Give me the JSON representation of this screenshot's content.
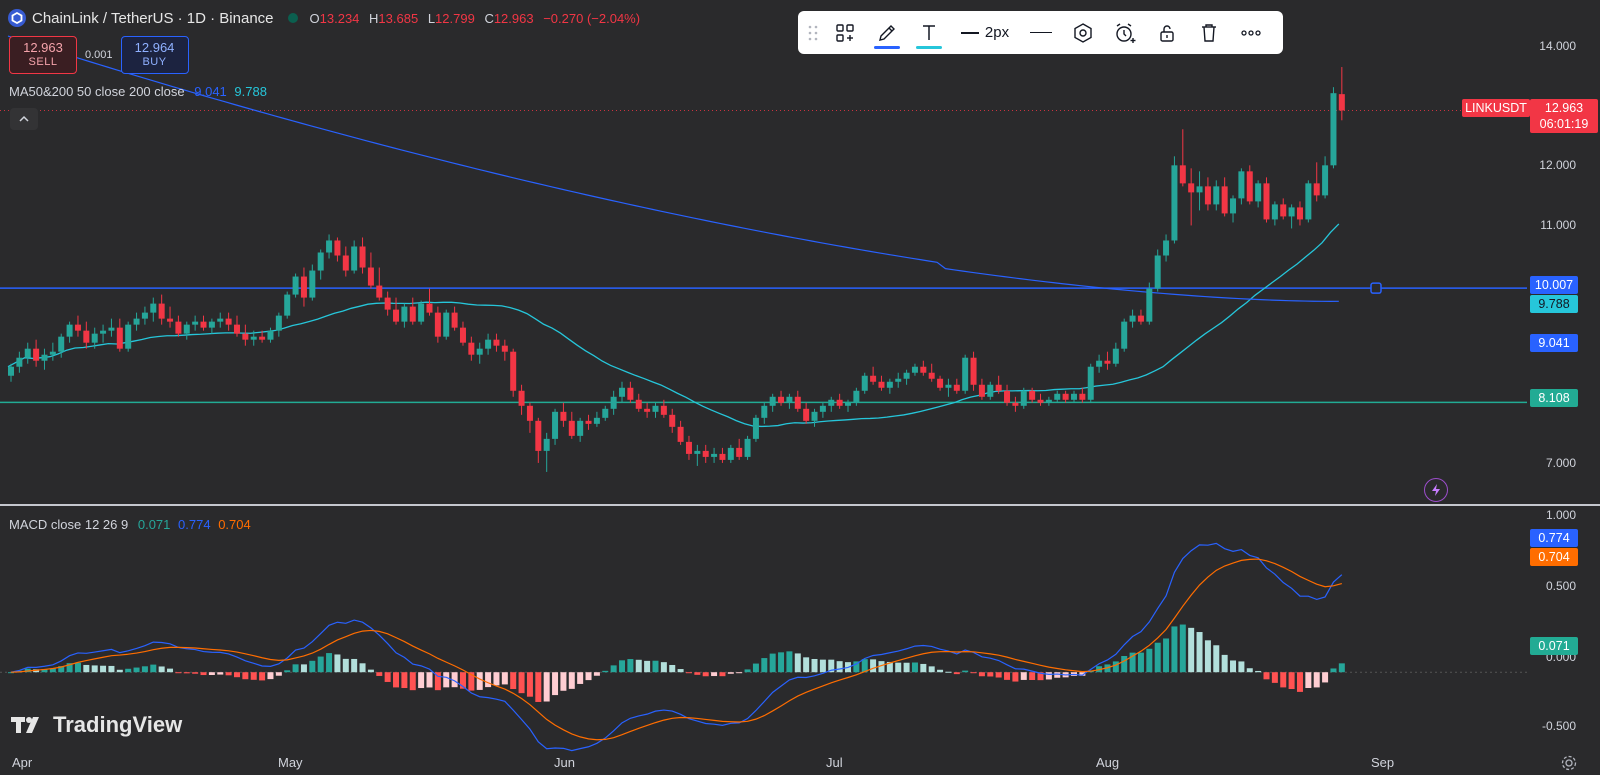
{
  "header": {
    "symbol_title": "ChainLink / TetherUS · 1D · Binance",
    "ohlc": [
      {
        "key": "O",
        "value": "13.234"
      },
      {
        "key": "H",
        "value": "13.685"
      },
      {
        "key": "L",
        "value": "12.799"
      },
      {
        "key": "C",
        "value": "12.963"
      }
    ],
    "change": "−0.270 (−2.04%)"
  },
  "trade": {
    "sell_price": "12.963",
    "sell_label": "SELL",
    "spread": "0.001",
    "buy_price": "12.964",
    "buy_label": "BUY"
  },
  "ma_indicator": {
    "label": "MA50&200 50 close 200 close",
    "ma50": "9.041",
    "ma200": "9.788"
  },
  "macd_indicator": {
    "label": "MACD close 12 26 9",
    "hist": "0.071",
    "macd": "0.774",
    "signal": "0.704"
  },
  "drawing_toolbar": {
    "stroke_width": "2px"
  },
  "price_axis": {
    "ticks": [
      "14.000",
      "12.000",
      "11.000",
      "7.000"
    ],
    "tags": {
      "symbol": "LINKUSDT",
      "last": "12.963",
      "countdown": "06:01:19",
      "hline_top": "10.007",
      "ma200": "9.788",
      "ma50": "9.041",
      "hline_bottom": "8.108"
    }
  },
  "macd_axis": {
    "ticks": [
      "1.000",
      "0.500",
      "0.000",
      "-0.500"
    ],
    "tags": {
      "macd": "0.774",
      "signal": "0.704",
      "hist": "0.071"
    }
  },
  "time_axis": {
    "months": [
      "Apr",
      "May",
      "Jun",
      "Jul",
      "Aug",
      "Sep"
    ]
  },
  "branding": {
    "name": "TradingView"
  },
  "colors": {
    "up": "#26a69a",
    "down": "#f23645",
    "ma50": "#2962ff",
    "ma200": "#26c6da",
    "macd": "#2962ff",
    "signal": "#ff6d00",
    "hline_top": "#2962ff",
    "hline_bottom": "#22ab94"
  },
  "chart_data": {
    "type": "candlestick",
    "title": "ChainLink / TetherUS · 1D · Binance",
    "price_range": [
      6.4,
      14.8
    ],
    "horizontal_lines": [
      10.007,
      8.108
    ],
    "candles": [
      {
        "o": 8.55,
        "h": 8.75,
        "l": 8.45,
        "c": 8.7
      },
      {
        "o": 8.7,
        "h": 8.95,
        "l": 8.6,
        "c": 8.85
      },
      {
        "o": 8.85,
        "h": 9.1,
        "l": 8.75,
        "c": 9.0
      },
      {
        "o": 9.0,
        "h": 9.15,
        "l": 8.7,
        "c": 8.8
      },
      {
        "o": 8.8,
        "h": 9.0,
        "l": 8.65,
        "c": 8.9
      },
      {
        "o": 8.9,
        "h": 9.1,
        "l": 8.8,
        "c": 8.95
      },
      {
        "o": 8.95,
        "h": 9.25,
        "l": 8.85,
        "c": 9.2
      },
      {
        "o": 9.2,
        "h": 9.45,
        "l": 9.1,
        "c": 9.4
      },
      {
        "o": 9.4,
        "h": 9.55,
        "l": 9.2,
        "c": 9.3
      },
      {
        "o": 9.3,
        "h": 9.45,
        "l": 9.0,
        "c": 9.1
      },
      {
        "o": 9.1,
        "h": 9.35,
        "l": 9.0,
        "c": 9.25
      },
      {
        "o": 9.25,
        "h": 9.4,
        "l": 9.1,
        "c": 9.3
      },
      {
        "o": 9.3,
        "h": 9.5,
        "l": 9.2,
        "c": 9.35
      },
      {
        "o": 9.35,
        "h": 9.5,
        "l": 8.95,
        "c": 9.0
      },
      {
        "o": 9.0,
        "h": 9.45,
        "l": 8.95,
        "c": 9.4
      },
      {
        "o": 9.4,
        "h": 9.6,
        "l": 9.3,
        "c": 9.5
      },
      {
        "o": 9.5,
        "h": 9.7,
        "l": 9.4,
        "c": 9.6
      },
      {
        "o": 9.6,
        "h": 9.85,
        "l": 9.45,
        "c": 9.75
      },
      {
        "o": 9.75,
        "h": 9.9,
        "l": 9.4,
        "c": 9.5
      },
      {
        "o": 9.5,
        "h": 9.7,
        "l": 9.35,
        "c": 9.45
      },
      {
        "o": 9.45,
        "h": 9.55,
        "l": 9.2,
        "c": 9.25
      },
      {
        "o": 9.25,
        "h": 9.45,
        "l": 9.15,
        "c": 9.4
      },
      {
        "o": 9.4,
        "h": 9.55,
        "l": 9.3,
        "c": 9.45
      },
      {
        "o": 9.45,
        "h": 9.55,
        "l": 9.3,
        "c": 9.35
      },
      {
        "o": 9.35,
        "h": 9.5,
        "l": 9.25,
        "c": 9.45
      },
      {
        "o": 9.45,
        "h": 9.6,
        "l": 9.35,
        "c": 9.5
      },
      {
        "o": 9.5,
        "h": 9.6,
        "l": 9.3,
        "c": 9.4
      },
      {
        "o": 9.4,
        "h": 9.55,
        "l": 9.2,
        "c": 9.25
      },
      {
        "o": 9.25,
        "h": 9.4,
        "l": 9.05,
        "c": 9.15
      },
      {
        "o": 9.15,
        "h": 9.3,
        "l": 9.05,
        "c": 9.2
      },
      {
        "o": 9.2,
        "h": 9.3,
        "l": 9.1,
        "c": 9.15
      },
      {
        "o": 9.15,
        "h": 9.35,
        "l": 9.1,
        "c": 9.3
      },
      {
        "o": 9.3,
        "h": 9.6,
        "l": 9.2,
        "c": 9.55
      },
      {
        "o": 9.55,
        "h": 9.95,
        "l": 9.5,
        "c": 9.9
      },
      {
        "o": 9.9,
        "h": 10.25,
        "l": 9.85,
        "c": 10.2
      },
      {
        "o": 10.2,
        "h": 10.35,
        "l": 9.7,
        "c": 9.85
      },
      {
        "o": 9.85,
        "h": 10.4,
        "l": 9.8,
        "c": 10.3
      },
      {
        "o": 10.3,
        "h": 10.65,
        "l": 10.15,
        "c": 10.6
      },
      {
        "o": 10.6,
        "h": 10.9,
        "l": 10.5,
        "c": 10.8
      },
      {
        "o": 10.8,
        "h": 10.85,
        "l": 10.45,
        "c": 10.55
      },
      {
        "o": 10.55,
        "h": 10.7,
        "l": 10.2,
        "c": 10.3
      },
      {
        "o": 10.3,
        "h": 10.8,
        "l": 10.25,
        "c": 10.7
      },
      {
        "o": 10.7,
        "h": 10.85,
        "l": 10.25,
        "c": 10.35
      },
      {
        "o": 10.35,
        "h": 10.6,
        "l": 10.0,
        "c": 10.05
      },
      {
        "o": 10.05,
        "h": 10.35,
        "l": 9.8,
        "c": 9.85
      },
      {
        "o": 9.85,
        "h": 9.95,
        "l": 9.55,
        "c": 9.65
      },
      {
        "o": 9.65,
        "h": 9.85,
        "l": 9.4,
        "c": 9.45
      },
      {
        "o": 9.45,
        "h": 9.75,
        "l": 9.35,
        "c": 9.7
      },
      {
        "o": 9.7,
        "h": 9.85,
        "l": 9.4,
        "c": 9.45
      },
      {
        "o": 9.45,
        "h": 9.8,
        "l": 9.4,
        "c": 9.75
      },
      {
        "o": 9.75,
        "h": 10.0,
        "l": 9.55,
        "c": 9.6
      },
      {
        "o": 9.6,
        "h": 9.7,
        "l": 9.1,
        "c": 9.2
      },
      {
        "o": 9.2,
        "h": 9.65,
        "l": 9.15,
        "c": 9.6
      },
      {
        "o": 9.6,
        "h": 9.7,
        "l": 9.3,
        "c": 9.35
      },
      {
        "o": 9.35,
        "h": 9.45,
        "l": 9.05,
        "c": 9.1
      },
      {
        "o": 9.1,
        "h": 9.2,
        "l": 8.8,
        "c": 8.9
      },
      {
        "o": 8.9,
        "h": 9.1,
        "l": 8.75,
        "c": 9.0
      },
      {
        "o": 9.0,
        "h": 9.25,
        "l": 8.9,
        "c": 9.15
      },
      {
        "o": 9.15,
        "h": 9.25,
        "l": 8.95,
        "c": 9.05
      },
      {
        "o": 9.05,
        "h": 9.15,
        "l": 8.8,
        "c": 8.95
      },
      {
        "o": 8.95,
        "h": 9.0,
        "l": 8.2,
        "c": 8.3
      },
      {
        "o": 8.3,
        "h": 8.4,
        "l": 7.9,
        "c": 8.05
      },
      {
        "o": 8.05,
        "h": 8.1,
        "l": 7.6,
        "c": 7.8
      },
      {
        "o": 7.8,
        "h": 7.85,
        "l": 7.1,
        "c": 7.3
      },
      {
        "o": 7.3,
        "h": 7.6,
        "l": 6.95,
        "c": 7.5
      },
      {
        "o": 7.5,
        "h": 8.0,
        "l": 7.4,
        "c": 7.95
      },
      {
        "o": 7.95,
        "h": 8.1,
        "l": 7.7,
        "c": 7.8
      },
      {
        "o": 7.8,
        "h": 7.95,
        "l": 7.5,
        "c": 7.55
      },
      {
        "o": 7.55,
        "h": 7.85,
        "l": 7.45,
        "c": 7.8
      },
      {
        "o": 7.8,
        "h": 7.9,
        "l": 7.65,
        "c": 7.75
      },
      {
        "o": 7.75,
        "h": 7.95,
        "l": 7.7,
        "c": 7.85
      },
      {
        "o": 7.85,
        "h": 8.05,
        "l": 7.8,
        "c": 8.0
      },
      {
        "o": 8.0,
        "h": 8.3,
        "l": 7.9,
        "c": 8.2
      },
      {
        "o": 8.2,
        "h": 8.45,
        "l": 8.1,
        "c": 8.35
      },
      {
        "o": 8.35,
        "h": 8.45,
        "l": 8.1,
        "c": 8.15
      },
      {
        "o": 8.15,
        "h": 8.25,
        "l": 7.95,
        "c": 8.0
      },
      {
        "o": 8.0,
        "h": 8.1,
        "l": 7.85,
        "c": 7.95
      },
      {
        "o": 7.95,
        "h": 8.1,
        "l": 7.85,
        "c": 8.05
      },
      {
        "o": 8.05,
        "h": 8.15,
        "l": 7.85,
        "c": 7.9
      },
      {
        "o": 7.9,
        "h": 8.0,
        "l": 7.6,
        "c": 7.7
      },
      {
        "o": 7.7,
        "h": 7.8,
        "l": 7.4,
        "c": 7.45
      },
      {
        "o": 7.45,
        "h": 7.55,
        "l": 7.15,
        "c": 7.25
      },
      {
        "o": 7.25,
        "h": 7.4,
        "l": 7.05,
        "c": 7.3
      },
      {
        "o": 7.3,
        "h": 7.4,
        "l": 7.1,
        "c": 7.2
      },
      {
        "o": 7.2,
        "h": 7.35,
        "l": 7.1,
        "c": 7.25
      },
      {
        "o": 7.25,
        "h": 7.35,
        "l": 7.1,
        "c": 7.15
      },
      {
        "o": 7.15,
        "h": 7.4,
        "l": 7.1,
        "c": 7.35
      },
      {
        "o": 7.35,
        "h": 7.5,
        "l": 7.15,
        "c": 7.2
      },
      {
        "o": 7.2,
        "h": 7.55,
        "l": 7.15,
        "c": 7.5
      },
      {
        "o": 7.5,
        "h": 7.9,
        "l": 7.45,
        "c": 7.85
      },
      {
        "o": 7.85,
        "h": 8.1,
        "l": 7.75,
        "c": 8.05
      },
      {
        "o": 8.05,
        "h": 8.25,
        "l": 7.95,
        "c": 8.2
      },
      {
        "o": 8.2,
        "h": 8.3,
        "l": 8.05,
        "c": 8.1
      },
      {
        "o": 8.1,
        "h": 8.25,
        "l": 8.0,
        "c": 8.2
      },
      {
        "o": 8.2,
        "h": 8.3,
        "l": 7.95,
        "c": 8.0
      },
      {
        "o": 8.0,
        "h": 8.1,
        "l": 7.75,
        "c": 7.8
      },
      {
        "o": 7.8,
        "h": 8.0,
        "l": 7.7,
        "c": 7.95
      },
      {
        "o": 7.95,
        "h": 8.1,
        "l": 7.85,
        "c": 8.05
      },
      {
        "o": 8.05,
        "h": 8.2,
        "l": 7.95,
        "c": 8.15
      },
      {
        "o": 8.15,
        "h": 8.25,
        "l": 8.0,
        "c": 8.05
      },
      {
        "o": 8.05,
        "h": 8.15,
        "l": 7.95,
        "c": 8.1
      },
      {
        "o": 8.1,
        "h": 8.35,
        "l": 8.05,
        "c": 8.3
      },
      {
        "o": 8.3,
        "h": 8.6,
        "l": 8.25,
        "c": 8.55
      },
      {
        "o": 8.55,
        "h": 8.7,
        "l": 8.4,
        "c": 8.45
      },
      {
        "o": 8.45,
        "h": 8.55,
        "l": 8.3,
        "c": 8.35
      },
      {
        "o": 8.35,
        "h": 8.5,
        "l": 8.25,
        "c": 8.45
      },
      {
        "o": 8.45,
        "h": 8.6,
        "l": 8.35,
        "c": 8.5
      },
      {
        "o": 8.5,
        "h": 8.65,
        "l": 8.4,
        "c": 8.6
      },
      {
        "o": 8.6,
        "h": 8.75,
        "l": 8.55,
        "c": 8.7
      },
      {
        "o": 8.7,
        "h": 8.8,
        "l": 8.55,
        "c": 8.6
      },
      {
        "o": 8.6,
        "h": 8.75,
        "l": 8.45,
        "c": 8.5
      },
      {
        "o": 8.5,
        "h": 8.55,
        "l": 8.3,
        "c": 8.35
      },
      {
        "o": 8.35,
        "h": 8.5,
        "l": 8.2,
        "c": 8.4
      },
      {
        "o": 8.4,
        "h": 8.5,
        "l": 8.25,
        "c": 8.3
      },
      {
        "o": 8.3,
        "h": 8.9,
        "l": 8.25,
        "c": 8.85
      },
      {
        "o": 8.85,
        "h": 8.95,
        "l": 8.3,
        "c": 8.4
      },
      {
        "o": 8.4,
        "h": 8.5,
        "l": 8.15,
        "c": 8.2
      },
      {
        "o": 8.2,
        "h": 8.45,
        "l": 8.15,
        "c": 8.4
      },
      {
        "o": 8.4,
        "h": 8.55,
        "l": 8.25,
        "c": 8.3
      },
      {
        "o": 8.3,
        "h": 8.4,
        "l": 8.05,
        "c": 8.1
      },
      {
        "o": 8.1,
        "h": 8.2,
        "l": 7.95,
        "c": 8.05
      },
      {
        "o": 8.05,
        "h": 8.35,
        "l": 8.0,
        "c": 8.3
      },
      {
        "o": 8.3,
        "h": 8.35,
        "l": 8.1,
        "c": 8.15
      },
      {
        "o": 8.15,
        "h": 8.25,
        "l": 8.05,
        "c": 8.1
      },
      {
        "o": 8.1,
        "h": 8.2,
        "l": 8.05,
        "c": 8.15
      },
      {
        "o": 8.15,
        "h": 8.3,
        "l": 8.1,
        "c": 8.25
      },
      {
        "o": 8.25,
        "h": 8.3,
        "l": 8.1,
        "c": 8.15
      },
      {
        "o": 8.15,
        "h": 8.3,
        "l": 8.1,
        "c": 8.25
      },
      {
        "o": 8.25,
        "h": 8.35,
        "l": 8.1,
        "c": 8.15
      },
      {
        "o": 8.15,
        "h": 8.75,
        "l": 8.1,
        "c": 8.7
      },
      {
        "o": 8.7,
        "h": 8.9,
        "l": 8.6,
        "c": 8.8
      },
      {
        "o": 8.8,
        "h": 8.95,
        "l": 8.65,
        "c": 8.75
      },
      {
        "o": 8.75,
        "h": 9.1,
        "l": 8.7,
        "c": 9.0
      },
      {
        "o": 9.0,
        "h": 9.5,
        "l": 8.95,
        "c": 9.45
      },
      {
        "o": 9.45,
        "h": 9.65,
        "l": 9.35,
        "c": 9.55
      },
      {
        "o": 9.55,
        "h": 9.65,
        "l": 9.4,
        "c": 9.45
      },
      {
        "o": 9.45,
        "h": 10.1,
        "l": 9.4,
        "c": 10.0
      },
      {
        "o": 10.0,
        "h": 10.65,
        "l": 9.95,
        "c": 10.55
      },
      {
        "o": 10.55,
        "h": 10.9,
        "l": 10.45,
        "c": 10.8
      },
      {
        "o": 10.8,
        "h": 12.2,
        "l": 10.75,
        "c": 12.05
      },
      {
        "o": 12.05,
        "h": 12.65,
        "l": 11.7,
        "c": 11.75
      },
      {
        "o": 11.75,
        "h": 12.0,
        "l": 11.05,
        "c": 11.6
      },
      {
        "o": 11.6,
        "h": 11.95,
        "l": 11.3,
        "c": 11.7
      },
      {
        "o": 11.7,
        "h": 11.85,
        "l": 11.3,
        "c": 11.4
      },
      {
        "o": 11.4,
        "h": 11.8,
        "l": 11.3,
        "c": 11.7
      },
      {
        "o": 11.7,
        "h": 11.85,
        "l": 11.2,
        "c": 11.25
      },
      {
        "o": 11.25,
        "h": 11.55,
        "l": 11.1,
        "c": 11.5
      },
      {
        "o": 11.5,
        "h": 12.0,
        "l": 11.4,
        "c": 11.95
      },
      {
        "o": 11.95,
        "h": 12.05,
        "l": 11.4,
        "c": 11.45
      },
      {
        "o": 11.45,
        "h": 11.8,
        "l": 11.35,
        "c": 11.75
      },
      {
        "o": 11.75,
        "h": 11.85,
        "l": 11.1,
        "c": 11.15
      },
      {
        "o": 11.15,
        "h": 11.45,
        "l": 11.05,
        "c": 11.4
      },
      {
        "o": 11.4,
        "h": 11.5,
        "l": 11.15,
        "c": 11.2
      },
      {
        "o": 11.2,
        "h": 11.4,
        "l": 11.0,
        "c": 11.35
      },
      {
        "o": 11.35,
        "h": 11.45,
        "l": 11.05,
        "c": 11.15
      },
      {
        "o": 11.15,
        "h": 11.8,
        "l": 11.1,
        "c": 11.75
      },
      {
        "o": 11.75,
        "h": 12.1,
        "l": 11.45,
        "c": 11.55
      },
      {
        "o": 11.55,
        "h": 12.2,
        "l": 11.5,
        "c": 12.05
      },
      {
        "o": 12.05,
        "h": 13.35,
        "l": 12.0,
        "c": 13.25
      },
      {
        "o": 13.234,
        "h": 13.685,
        "l": 12.799,
        "c": 12.963
      }
    ],
    "ma50_endpoints": [
      9.25,
      9.041
    ],
    "ma200_endpoints": [
      14.2,
      9.788
    ],
    "macd_range": [
      -0.62,
      1.12
    ]
  }
}
